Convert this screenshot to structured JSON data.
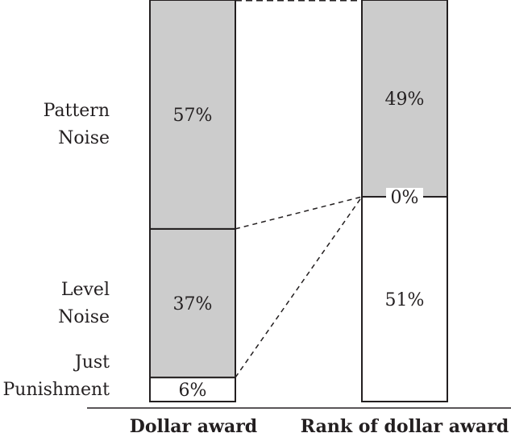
{
  "chart_data": {
    "type": "bar",
    "stacked": true,
    "categories": [
      "Dollar award",
      "Rank of dollar award"
    ],
    "series": [
      {
        "name": "Just Punishment",
        "values": [
          6,
          51
        ],
        "labels": [
          "6%",
          "51%"
        ]
      },
      {
        "name": "Level Noise",
        "values": [
          37,
          0
        ],
        "labels": [
          "37%",
          "0%"
        ]
      },
      {
        "name": "Pattern Noise",
        "values": [
          57,
          49
        ],
        "labels": [
          "57%",
          "49%"
        ]
      }
    ],
    "row_labels": {
      "pattern": [
        "Pattern",
        "Noise"
      ],
      "level": [
        "Level",
        "Noise"
      ],
      "just": [
        "Just",
        "Punishment"
      ]
    },
    "colors": {
      "shaded": "#cccccc",
      "white": "#ffffff",
      "stroke": "#231f20"
    },
    "ylim": [
      0,
      100
    ]
  }
}
